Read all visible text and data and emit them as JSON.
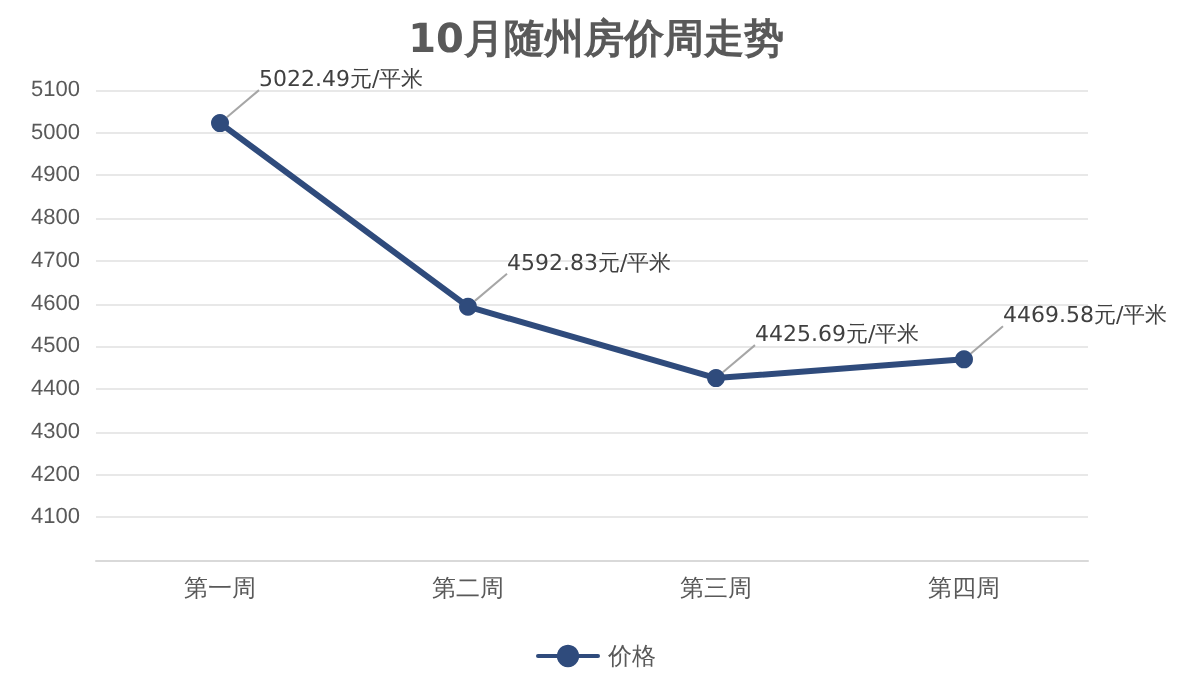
{
  "chart_data": {
    "type": "line",
    "title": "10月随州房价周走势",
    "categories": [
      "第一周",
      "第二周",
      "第三周",
      "第四周"
    ],
    "series": [
      {
        "name": "价格",
        "color": "#2f4b7c",
        "values": [
          5022.49,
          4592.83,
          4425.69,
          4469.58
        ],
        "value_labels": [
          "5022.49元/平米",
          "4592.83元/平米",
          "4425.69元/平米",
          "4469.58元/平米"
        ]
      }
    ],
    "ylim": [
      4000,
      5100
    ],
    "yticks": [
      {
        "value": 4000,
        "label": null
      },
      4100,
      4200,
      4300,
      4400,
      4500,
      4600,
      4700,
      4800,
      4900,
      5000,
      5100
    ],
    "grid": "y",
    "legend": "bottom",
    "marker": "circle",
    "line_style": "solid"
  }
}
